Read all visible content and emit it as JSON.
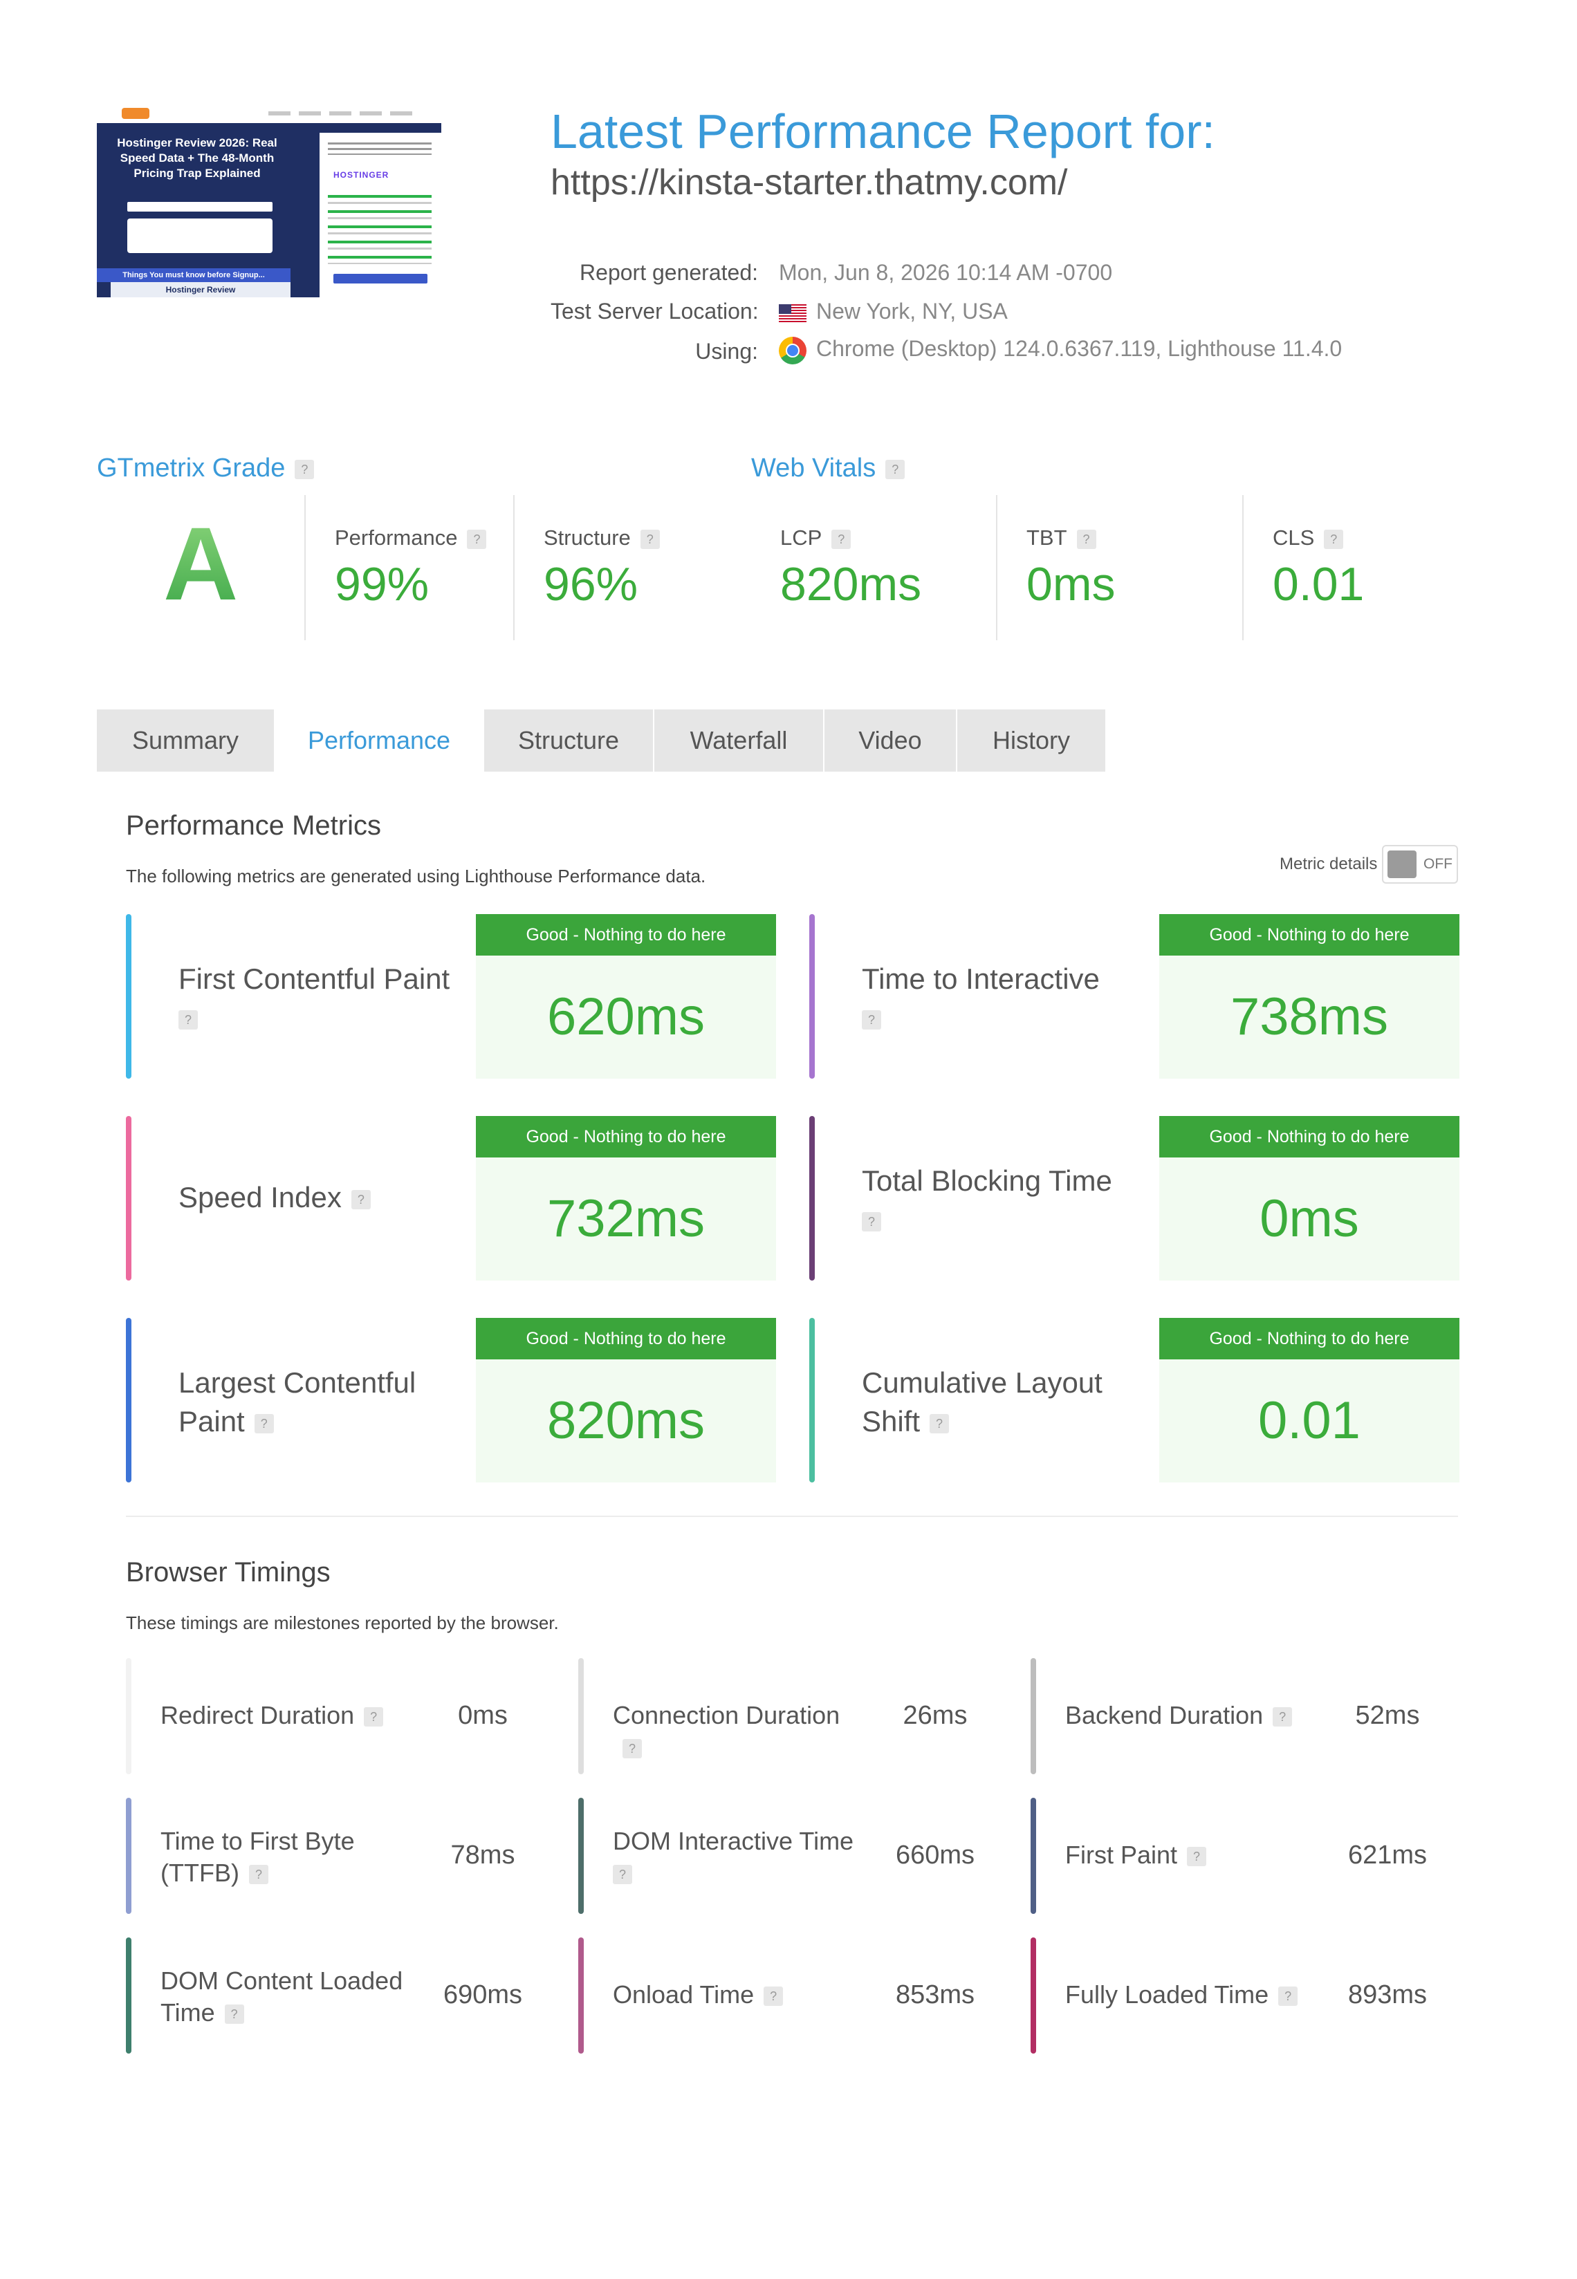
{
  "header": {
    "title": "Latest Performance Report for:",
    "url": "https://kinsta-starter.thatmy.com/",
    "report_generated_label": "Report generated:",
    "report_generated_value": "Mon, Jun 8, 2026 10:14 AM -0700",
    "server_location_label": "Test Server Location:",
    "server_location_value": "New York, NY, USA",
    "using_label": "Using:",
    "using_value": "Chrome (Desktop) 124.0.6367.119, Lighthouse 11.4.0",
    "icons": [
      "us-flag-icon",
      "chrome-icon"
    ]
  },
  "thumbnail": {
    "hero_title": "Hostinger Review 2026: Real Speed Data + The 48-Month Pricing Trap Explained",
    "brand": "HOSTINGER",
    "bottom_banner": "Things You must know before Signup...",
    "bottom_label": "Hostinger Review"
  },
  "grade": {
    "heading": "GTmetrix Grade",
    "letter": "A",
    "performance_label": "Performance",
    "performance_value": "99%",
    "structure_label": "Structure",
    "structure_value": "96%"
  },
  "web_vitals": {
    "heading": "Web Vitals",
    "items": [
      {
        "label": "LCP",
        "value": "820ms"
      },
      {
        "label": "TBT",
        "value": "0ms"
      },
      {
        "label": "CLS",
        "value": "0.01"
      }
    ]
  },
  "tabs": [
    {
      "label": "Summary",
      "active": false
    },
    {
      "label": "Performance",
      "active": true
    },
    {
      "label": "Structure",
      "active": false
    },
    {
      "label": "Waterfall",
      "active": false
    },
    {
      "label": "Video",
      "active": false
    },
    {
      "label": "History",
      "active": false
    }
  ],
  "performance_metrics": {
    "heading": "Performance Metrics",
    "description": "The following metrics are generated using Lighthouse Performance data.",
    "toggle_label": "Metric details",
    "toggle_state": "OFF",
    "status_text": "Good - Nothing to do here",
    "good_color": "#3ba53b",
    "cards": [
      {
        "name": "First Contentful Paint",
        "value": "620ms",
        "color": "#3fb8e8"
      },
      {
        "name": "Time to Interactive",
        "value": "738ms",
        "color": "#a675cf"
      },
      {
        "name": "Speed Index",
        "value": "732ms",
        "color": "#ec6a9e"
      },
      {
        "name": "Total Blocking Time",
        "value": "0ms",
        "color": "#6b3f75"
      },
      {
        "name": "Largest Contentful Paint",
        "value": "820ms",
        "color": "#3d74d6"
      },
      {
        "name": "Cumulative Layout Shift",
        "value": "0.01",
        "color": "#4cbfa0"
      }
    ]
  },
  "browser_timings": {
    "heading": "Browser Timings",
    "description": "These timings are milestones reported by the browser.",
    "items": [
      {
        "name": "Redirect Duration",
        "value": "0ms",
        "color": "#f2f2f2"
      },
      {
        "name": "Connection Duration",
        "value": "26ms",
        "color": "#dedede"
      },
      {
        "name": "Backend Duration",
        "value": "52ms",
        "color": "#bdbdbd"
      },
      {
        "name": "Time to First Byte (TTFB)",
        "value": "78ms",
        "color": "#8f9ed1"
      },
      {
        "name": "DOM Interactive Time",
        "value": "660ms",
        "color": "#4e6e6a"
      },
      {
        "name": "First Paint",
        "value": "621ms",
        "color": "#4f5f86"
      },
      {
        "name": "DOM Content Loaded Time",
        "value": "690ms",
        "color": "#3e7f6d"
      },
      {
        "name": "Onload Time",
        "value": "853ms",
        "color": "#b05a8c"
      },
      {
        "name": "Fully Loaded Time",
        "value": "893ms",
        "color": "#b22e63"
      }
    ]
  }
}
